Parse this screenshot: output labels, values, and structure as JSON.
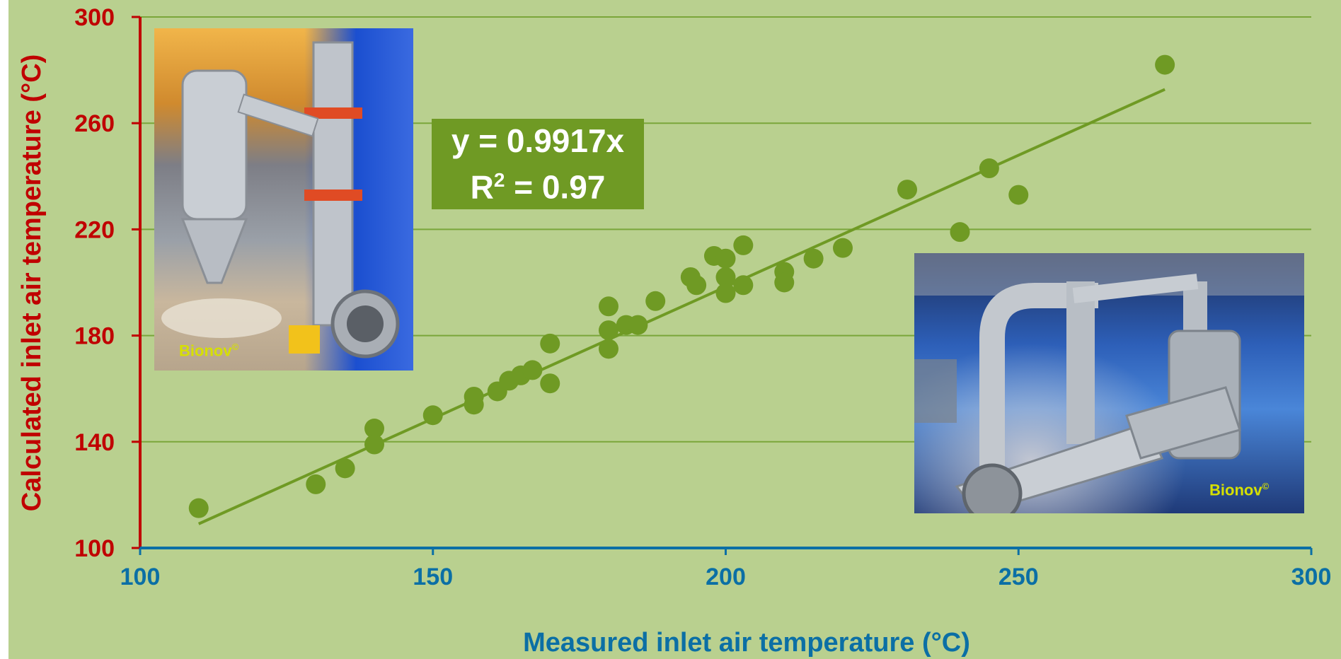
{
  "chart_data": {
    "type": "scatter",
    "title": "",
    "xlabel": "Measured inlet air temperature (°C)",
    "ylabel": "Calculated inlet air temperature (°C)",
    "xlim": [
      100,
      300
    ],
    "ylim": [
      100,
      300
    ],
    "x_ticks": [
      "100",
      "150",
      "200",
      "250",
      "300"
    ],
    "y_ticks": [
      "100",
      "140",
      "180",
      "220",
      "260",
      "300"
    ],
    "grid": "horizontal",
    "series": [
      {
        "marker_color": "#6f9a24",
        "points": [
          [
            110,
            115
          ],
          [
            130,
            124
          ],
          [
            135,
            130
          ],
          [
            140,
            145
          ],
          [
            140,
            139
          ],
          [
            150,
            150
          ],
          [
            157,
            157
          ],
          [
            157,
            154
          ],
          [
            161,
            159
          ],
          [
            163,
            163
          ],
          [
            165,
            165
          ],
          [
            167,
            167
          ],
          [
            170,
            177
          ],
          [
            170,
            162
          ],
          [
            180,
            191
          ],
          [
            180,
            182
          ],
          [
            180,
            175
          ],
          [
            183,
            184
          ],
          [
            185,
            184
          ],
          [
            188,
            193
          ],
          [
            194,
            202
          ],
          [
            195,
            199
          ],
          [
            198,
            210
          ],
          [
            200,
            209
          ],
          [
            200,
            202
          ],
          [
            200,
            196
          ],
          [
            203,
            214
          ],
          [
            203,
            199
          ],
          [
            210,
            204
          ],
          [
            210,
            200
          ],
          [
            215,
            209
          ],
          [
            220,
            213
          ],
          [
            231,
            235
          ],
          [
            240,
            219
          ],
          [
            245,
            243
          ],
          [
            250,
            233
          ],
          [
            275,
            282
          ]
        ]
      }
    ],
    "trendline": {
      "slope": 0.9917,
      "x_range": [
        110,
        275
      ],
      "color": "#6f9a24",
      "equation": "y = 0.9917x",
      "r2_prefix": "R",
      "r2_sup": "2",
      "r2_suffix": " = 0.97"
    }
  },
  "colors": {
    "background": "#b9d08f",
    "grid": "#7aa63a",
    "y_axis": "#c00000",
    "x_axis": "#0b6fa5"
  },
  "photos": {
    "left": {
      "credit": "Bionov",
      "credit_mark": "©"
    },
    "right": {
      "credit": "Bionov",
      "credit_mark": "©"
    }
  }
}
